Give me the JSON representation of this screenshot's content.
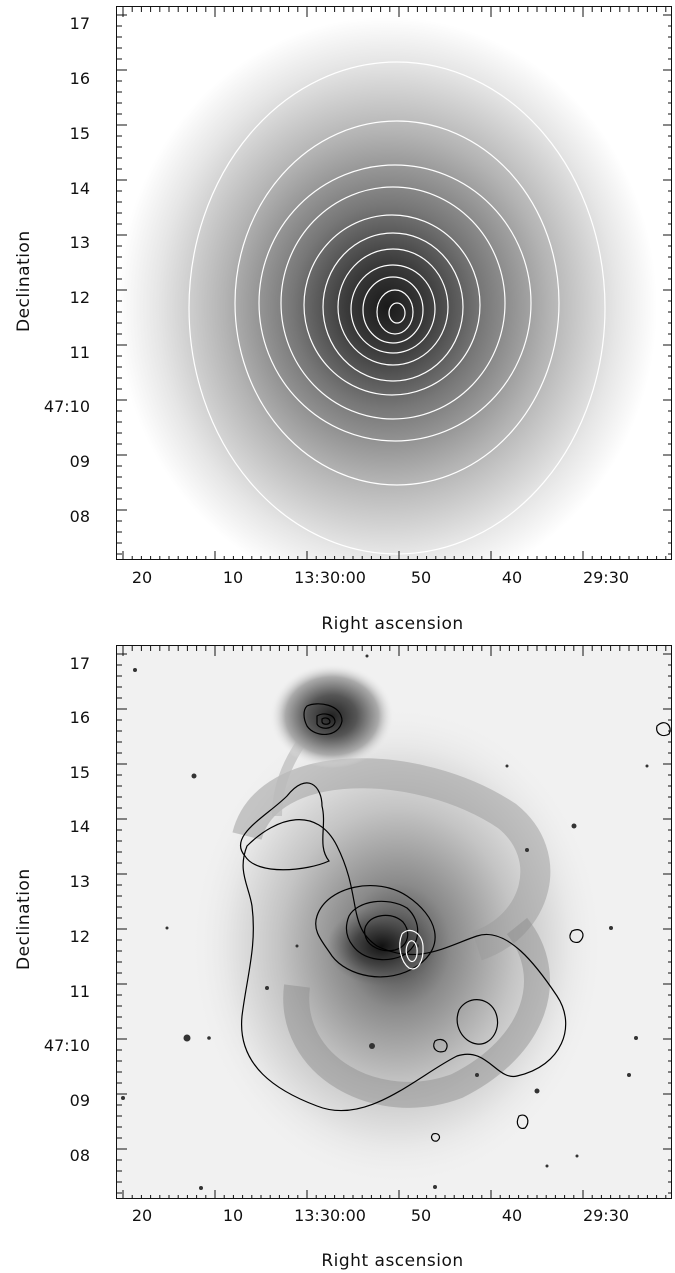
{
  "panels": [
    {
      "name": "model-panel",
      "y_label": "Declination",
      "x_label": "Right ascension",
      "y_ticks": [
        "17",
        "16",
        "15",
        "14",
        "13",
        "12",
        "11",
        "47:10",
        "09",
        "08"
      ],
      "x_ticks": [
        "20",
        "10",
        "13:30:00",
        "50",
        "40",
        "29:30"
      ]
    },
    {
      "name": "galaxy-panel",
      "y_label": "Declination",
      "x_label": "Right ascension",
      "y_ticks": [
        "17",
        "16",
        "15",
        "14",
        "13",
        "12",
        "11",
        "47:10",
        "09",
        "08"
      ],
      "x_ticks": [
        "20",
        "10",
        "13:30:00",
        "50",
        "40",
        "29:30"
      ]
    }
  ],
  "colors": {
    "frame": "#111111",
    "contour_top": "#ffffff",
    "contour_bottom": "#000000",
    "background": "#ffffff"
  }
}
